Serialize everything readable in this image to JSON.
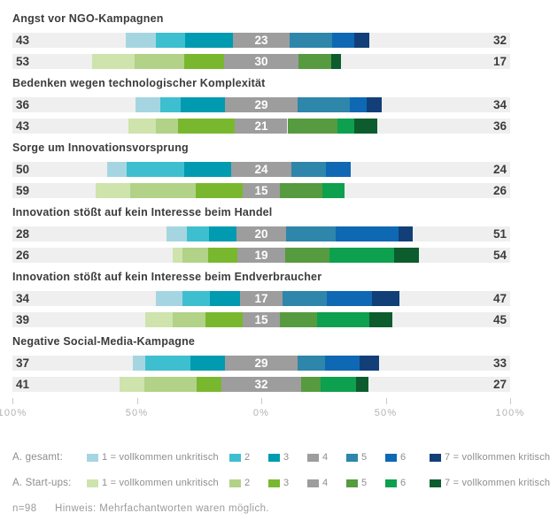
{
  "chart_data": {
    "type": "bar",
    "subtype": "diverging-stacked-likert",
    "axis": {
      "tick_labels": [
        "100%",
        "50%",
        "0%",
        "50%",
        "100%"
      ],
      "tick_positions_pct": [
        0,
        25,
        50,
        75,
        100
      ],
      "range": [
        -100,
        100
      ],
      "grid": false
    },
    "palette": {
      "gesamt": {
        "s1": "#a6d5e2",
        "s2": "#3ebfcf",
        "s3": "#009bb0",
        "s4": "#9d9d9d",
        "s5": "#2e86ab",
        "s6": "#0f68b4",
        "s7": "#123f78"
      },
      "startups": {
        "s1": "#cfe3ad",
        "s2": "#b1d287",
        "s3": "#79b82e",
        "s4": "#9d9d9d",
        "s5": "#569b3f",
        "s6": "#0da04e",
        "s7": "#0c5c2e"
      },
      "track_bg": "#efefef"
    },
    "legend": {
      "rows": [
        {
          "series": "gesamt",
          "label": "A. gesamt:"
        },
        {
          "series": "startups",
          "label": "A. Start-ups:"
        }
      ],
      "item_labels": [
        "1 = vollkommen unkritisch",
        "2",
        "3",
        "4",
        "5",
        "6",
        "7 = vollkommen kritisch"
      ],
      "position": "bottom"
    },
    "groups": [
      {
        "title": "Angst vor NGO-Kampagnen",
        "bars": [
          {
            "series": "gesamt",
            "left_total": 43,
            "center": 23,
            "right_total": 32,
            "segments": {
              "s1": 12,
              "s2": 12,
              "s3": 19,
              "s4": 23,
              "s5": 17,
              "s6": 9,
              "s7": 6
            }
          },
          {
            "series": "startups",
            "left_total": 53,
            "center": 30,
            "right_total": 17,
            "segments": {
              "s1": 17,
              "s2": 20,
              "s3": 16,
              "s4": 30,
              "s5": 13,
              "s6": 0,
              "s7": 4
            }
          }
        ]
      },
      {
        "title": "Bedenken wegen technologischer Komplexität",
        "bars": [
          {
            "series": "gesamt",
            "left_total": 36,
            "center": 29,
            "right_total": 34,
            "segments": {
              "s1": 10,
              "s2": 8,
              "s3": 18,
              "s4": 29,
              "s5": 21,
              "s6": 7,
              "s7": 6
            }
          },
          {
            "series": "startups",
            "left_total": 43,
            "center": 21,
            "right_total": 36,
            "segments": {
              "s1": 11,
              "s2": 9,
              "s3": 23,
              "s4": 21,
              "s5": 20,
              "s6": 7,
              "s7": 9
            }
          }
        ]
      },
      {
        "title": "Sorge um Innovationsvorsprung",
        "bars": [
          {
            "series": "gesamt",
            "left_total": 50,
            "center": 24,
            "right_total": 24,
            "segments": {
              "s1": 8,
              "s2": 23,
              "s3": 19,
              "s4": 24,
              "s5": 14,
              "s6": 10,
              "s7": 0
            }
          },
          {
            "series": "startups",
            "left_total": 59,
            "center": 15,
            "right_total": 26,
            "segments": {
              "s1": 14,
              "s2": 26,
              "s3": 19,
              "s4": 15,
              "s5": 17,
              "s6": 9,
              "s7": 0
            }
          }
        ]
      },
      {
        "title": "Innovation stößt auf kein Interesse beim Handel",
        "bars": [
          {
            "series": "gesamt",
            "left_total": 28,
            "center": 20,
            "right_total": 51,
            "segments": {
              "s1": 8,
              "s2": 9,
              "s3": 11,
              "s4": 20,
              "s5": 20,
              "s6": 25,
              "s7": 6
            }
          },
          {
            "series": "startups",
            "left_total": 26,
            "center": 19,
            "right_total": 54,
            "segments": {
              "s1": 4,
              "s2": 10,
              "s3": 12,
              "s4": 19,
              "s5": 18,
              "s6": 26,
              "s7": 10
            }
          }
        ]
      },
      {
        "title": "Innovation stößt auf kein Interesse beim Endverbraucher",
        "bars": [
          {
            "series": "gesamt",
            "left_total": 34,
            "center": 17,
            "right_total": 47,
            "segments": {
              "s1": 11,
              "s2": 11,
              "s3": 12,
              "s4": 17,
              "s5": 18,
              "s6": 18,
              "s7": 11
            }
          },
          {
            "series": "startups",
            "left_total": 39,
            "center": 15,
            "right_total": 45,
            "segments": {
              "s1": 11,
              "s2": 13,
              "s3": 15,
              "s4": 15,
              "s5": 15,
              "s6": 21,
              "s7": 9
            }
          }
        ]
      },
      {
        "title": "Negative Social-Media-Kampagne",
        "bars": [
          {
            "series": "gesamt",
            "left_total": 37,
            "center": 29,
            "right_total": 33,
            "segments": {
              "s1": 5,
              "s2": 18,
              "s3": 14,
              "s4": 29,
              "s5": 11,
              "s6": 14,
              "s7": 8
            }
          },
          {
            "series": "startups",
            "left_total": 41,
            "center": 32,
            "right_total": 27,
            "segments": {
              "s1": 10,
              "s2": 21,
              "s3": 10,
              "s4": 32,
              "s5": 8,
              "s6": 14,
              "s7": 5
            }
          }
        ]
      }
    ],
    "footer": {
      "n": "n=98",
      "hint": "Hinweis: Mehrfachantworten waren möglich."
    }
  }
}
